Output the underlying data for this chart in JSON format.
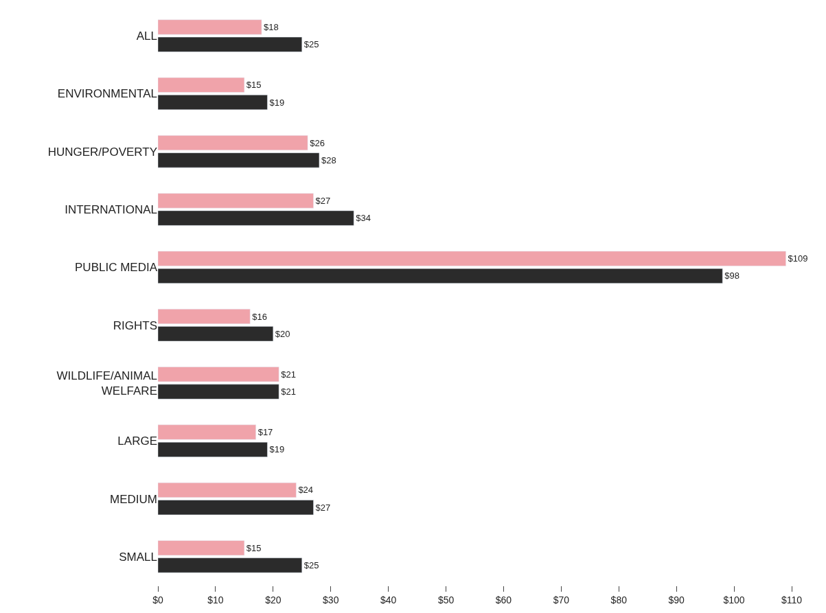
{
  "chart_data": {
    "type": "bar",
    "orientation": "horizontal",
    "categories": [
      "ALL",
      "ENVIRONMENTAL",
      "HUNGER/POVERTY",
      "INTERNATIONAL",
      "PUBLIC MEDIA",
      "RIGHTS",
      "WILDLIFE/ANIMAL\nWELFARE",
      "LARGE",
      "MEDIUM",
      "SMALL"
    ],
    "series": [
      {
        "color": "#f0a3aa",
        "values": [
          18,
          15,
          26,
          27,
          109,
          16,
          21,
          17,
          24,
          15
        ],
        "value_labels": [
          "$18",
          "$15",
          "$26",
          "$27",
          "$109",
          "$16",
          "$21",
          "$17",
          "$24",
          "$15"
        ]
      },
      {
        "color": "#2b2b2b",
        "values": [
          25,
          19,
          28,
          34,
          98,
          20,
          21,
          19,
          27,
          25
        ],
        "value_labels": [
          "$25",
          "$19",
          "$28",
          "$34",
          "$98",
          "$20",
          "$21",
          "$19",
          "$27",
          "$25"
        ]
      }
    ],
    "xlim": [
      0,
      110
    ],
    "xticks": [
      {
        "value": 0,
        "label": "$0"
      },
      {
        "value": 10,
        "label": "$10"
      },
      {
        "value": 20,
        "label": "$20"
      },
      {
        "value": 30,
        "label": "$30"
      },
      {
        "value": 40,
        "label": "$40"
      },
      {
        "value": 50,
        "label": "$50"
      },
      {
        "value": 60,
        "label": "$60"
      },
      {
        "value": 70,
        "label": "$70"
      },
      {
        "value": 80,
        "label": "$80"
      },
      {
        "value": 90,
        "label": "$90"
      },
      {
        "value": 100,
        "label": "$100"
      },
      {
        "value": 110,
        "label": "$110"
      }
    ],
    "data_labels": true
  }
}
